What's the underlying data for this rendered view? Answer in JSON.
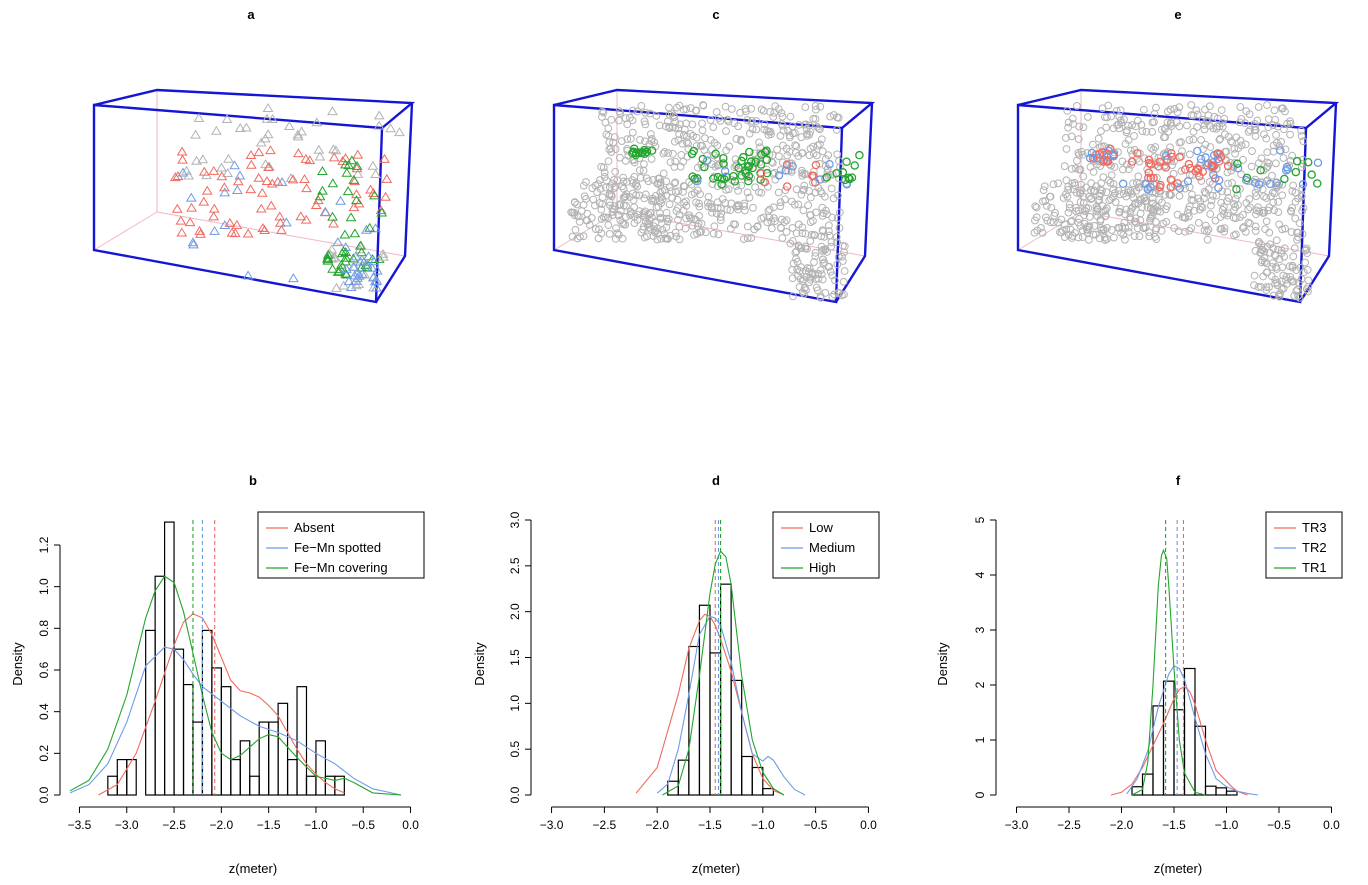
{
  "colors": {
    "red": "#f06a60",
    "blue": "#6f9be6",
    "green": "#22a52d",
    "gray": "#b3b3b3",
    "box": "#1515d5",
    "pinkbox": "#f2b7c3",
    "bar": "#000000"
  },
  "scatter3d": [
    {
      "panel_label": "a",
      "marker": "triangle",
      "points_shown": [
        "gray",
        "red",
        "blue",
        "green"
      ]
    },
    {
      "panel_label": "c",
      "marker": "circle",
      "points_shown": [
        "gray",
        "green",
        "red",
        "blue"
      ]
    },
    {
      "panel_label": "e",
      "marker": "circle",
      "points_shown": [
        "gray",
        "red",
        "blue",
        "green"
      ]
    }
  ],
  "chart_data": [
    {
      "type": "bar",
      "panel_label": "b",
      "xlabel": "z(meter)",
      "ylabel": "Density",
      "xlim": [
        -3.6,
        0.1
      ],
      "ylim": [
        0,
        1.32
      ],
      "xticks": [
        -3.5,
        -3.0,
        -2.5,
        -2.0,
        -1.5,
        -1.0,
        -0.5,
        0.0
      ],
      "xtick_labels": [
        "−3.5",
        "−3.0",
        "−2.5",
        "−2.0",
        "−1.5",
        "−1.0",
        "−0.5",
        "0.0"
      ],
      "yticks": [
        0.0,
        0.2,
        0.4,
        0.6,
        0.8,
        1.0,
        1.2
      ],
      "ytick_labels": [
        "0.0",
        "0.2",
        "0.4",
        "0.6",
        "0.8",
        "1.0",
        "1.2"
      ],
      "bin_width": 0.1,
      "bins_start": -3.2,
      "histogram": [
        0.09,
        0.17,
        0.17,
        0.0,
        0.79,
        1.05,
        1.31,
        0.7,
        0.53,
        0.35,
        0.79,
        0.61,
        0.52,
        0.17,
        0.26,
        0.09,
        0.35,
        0.35,
        0.44,
        0.17,
        0.52,
        0.09,
        0.26,
        0.09,
        0.09
      ],
      "legend_position": "top-right",
      "series": [
        {
          "name": "Absent",
          "color": "#f06a60",
          "vline": -2.07,
          "x": [
            -3.3,
            -3.1,
            -2.9,
            -2.7,
            -2.5,
            -2.4,
            -2.3,
            -2.2,
            -2.1,
            -2.0,
            -1.9,
            -1.8,
            -1.7,
            -1.6,
            -1.5,
            -1.4,
            -1.3,
            -1.2,
            -1.1,
            -1.0,
            -0.9,
            -0.8,
            -0.7
          ],
          "y": [
            0.0,
            0.05,
            0.2,
            0.45,
            0.72,
            0.83,
            0.87,
            0.85,
            0.77,
            0.66,
            0.55,
            0.5,
            0.49,
            0.47,
            0.43,
            0.38,
            0.3,
            0.22,
            0.15,
            0.1,
            0.06,
            0.03,
            0.01
          ]
        },
        {
          "name": "Fe−Mn spotted",
          "color": "#6f9be6",
          "vline": -2.2,
          "x": [
            -3.6,
            -3.4,
            -3.2,
            -3.0,
            -2.8,
            -2.6,
            -2.5,
            -2.4,
            -2.3,
            -2.2,
            -2.0,
            -1.8,
            -1.6,
            -1.4,
            -1.2,
            -1.0,
            -0.8,
            -0.6,
            -0.4,
            -0.1
          ],
          "y": [
            0.01,
            0.05,
            0.15,
            0.35,
            0.62,
            0.71,
            0.7,
            0.65,
            0.58,
            0.52,
            0.45,
            0.38,
            0.33,
            0.3,
            0.26,
            0.2,
            0.15,
            0.08,
            0.03,
            0.0
          ]
        },
        {
          "name": "Fe−Mn covering",
          "color": "#22a52d",
          "vline": -2.3,
          "x": [
            -3.6,
            -3.4,
            -3.2,
            -3.0,
            -2.8,
            -2.7,
            -2.6,
            -2.5,
            -2.4,
            -2.3,
            -2.2,
            -2.1,
            -2.0,
            -1.9,
            -1.8,
            -1.6,
            -1.5,
            -1.4,
            -1.2,
            -1.0,
            -0.8,
            -0.7,
            -0.6,
            -0.4,
            -0.1
          ],
          "y": [
            0.02,
            0.07,
            0.22,
            0.48,
            0.85,
            0.98,
            1.05,
            1.02,
            0.88,
            0.68,
            0.48,
            0.3,
            0.2,
            0.17,
            0.19,
            0.27,
            0.29,
            0.28,
            0.18,
            0.09,
            0.07,
            0.08,
            0.06,
            0.01,
            0.0
          ]
        }
      ]
    },
    {
      "type": "bar",
      "panel_label": "d",
      "xlabel": "z(meter)",
      "ylabel": "Density",
      "xlim": [
        -3.1,
        0.1
      ],
      "ylim": [
        0,
        3.0
      ],
      "xticks": [
        -3.0,
        -2.5,
        -2.0,
        -1.5,
        -1.0,
        -0.5,
        0.0
      ],
      "xtick_labels": [
        "−3.0",
        "−2.5",
        "−2.0",
        "−1.5",
        "−1.0",
        "−0.5",
        "0.0"
      ],
      "yticks": [
        0.0,
        0.5,
        1.0,
        1.5,
        2.0,
        2.5,
        3.0
      ],
      "ytick_labels": [
        "0.0",
        "0.5",
        "1.0",
        "1.5",
        "2.0",
        "2.5",
        "3.0"
      ],
      "bin_width": 0.1,
      "bins_start": -1.9,
      "histogram": [
        0.15,
        0.38,
        1.62,
        2.07,
        1.55,
        2.3,
        1.25,
        0.42,
        0.3,
        0.07
      ],
      "legend_position": "top-right",
      "series": [
        {
          "name": "Low",
          "color": "#f06a60",
          "vline": -1.45,
          "x": [
            -2.2,
            -2.0,
            -1.8,
            -1.7,
            -1.6,
            -1.55,
            -1.5,
            -1.45,
            -1.4,
            -1.3,
            -1.2,
            -1.1,
            -1.0,
            -0.9,
            -0.8
          ],
          "y": [
            0.02,
            0.3,
            1.1,
            1.6,
            1.9,
            1.97,
            1.95,
            1.85,
            1.7,
            1.35,
            0.9,
            0.45,
            0.18,
            0.05,
            0.0
          ]
        },
        {
          "name": "Medium",
          "color": "#6f9be6",
          "vline": -1.42,
          "x": [
            -2.0,
            -1.9,
            -1.8,
            -1.7,
            -1.6,
            -1.5,
            -1.45,
            -1.4,
            -1.3,
            -1.2,
            -1.1,
            -1.0,
            -0.95,
            -0.9,
            -0.8,
            -0.7,
            -0.6
          ],
          "y": [
            0.02,
            0.12,
            0.5,
            1.1,
            1.75,
            1.95,
            1.93,
            1.85,
            1.45,
            0.9,
            0.45,
            0.37,
            0.42,
            0.38,
            0.2,
            0.06,
            0.0
          ]
        },
        {
          "name": "High",
          "color": "#22a52d",
          "vline": -1.4,
          "x": [
            -1.95,
            -1.8,
            -1.7,
            -1.6,
            -1.5,
            -1.45,
            -1.4,
            -1.35,
            -1.3,
            -1.25,
            -1.2,
            -1.1,
            -1.0,
            -0.9,
            -0.8
          ],
          "y": [
            0.0,
            0.1,
            0.5,
            1.3,
            2.2,
            2.52,
            2.66,
            2.6,
            2.3,
            1.8,
            1.3,
            0.6,
            0.25,
            0.07,
            0.0
          ]
        }
      ]
    },
    {
      "type": "bar",
      "panel_label": "f",
      "xlabel": "z(meter)",
      "ylabel": "Density",
      "xlim": [
        -3.1,
        0.1
      ],
      "ylim": [
        0,
        5
      ],
      "xticks": [
        -3.0,
        -2.5,
        -2.0,
        -1.5,
        -1.0,
        -0.5,
        0.0
      ],
      "xtick_labels": [
        "−3.0",
        "−2.5",
        "−2.0",
        "−1.5",
        "−1.0",
        "−0.5",
        "0.0"
      ],
      "yticks": [
        0,
        1,
        2,
        3,
        4,
        5
      ],
      "ytick_labels": [
        "0",
        "1",
        "2",
        "3",
        "4",
        "5"
      ],
      "bin_width": 0.1,
      "bins_start": -1.9,
      "histogram": [
        0.15,
        0.38,
        1.62,
        2.07,
        1.55,
        2.3,
        1.25,
        0.16,
        0.13,
        0.07
      ],
      "legend_position": "top-right",
      "series": [
        {
          "name": "TR3",
          "color": "#f06a60",
          "vline": -1.41,
          "x": [
            -2.1,
            -2.0,
            -1.9,
            -1.8,
            -1.7,
            -1.6,
            -1.5,
            -1.45,
            -1.4,
            -1.35,
            -1.3,
            -1.2,
            -1.1,
            -1.0,
            -0.95,
            -0.9,
            -0.8
          ],
          "y": [
            0.0,
            0.05,
            0.2,
            0.5,
            0.9,
            1.3,
            1.75,
            1.92,
            1.97,
            1.88,
            1.65,
            1.0,
            0.45,
            0.25,
            0.15,
            0.07,
            0.0
          ]
        },
        {
          "name": "TR2",
          "color": "#6f9be6",
          "vline": -1.47,
          "x": [
            -1.95,
            -1.85,
            -1.75,
            -1.65,
            -1.55,
            -1.5,
            -1.45,
            -1.4,
            -1.3,
            -1.2,
            -1.1,
            -1.0,
            -0.9,
            -0.8,
            -0.7
          ],
          "y": [
            0.02,
            0.3,
            0.8,
            1.6,
            2.2,
            2.35,
            2.3,
            2.1,
            1.4,
            0.75,
            0.3,
            0.15,
            0.07,
            0.03,
            0.0
          ]
        },
        {
          "name": "TR1",
          "color": "#22a52d",
          "vline": -1.58,
          "x": [
            -1.9,
            -1.8,
            -1.75,
            -1.7,
            -1.65,
            -1.62,
            -1.6,
            -1.57,
            -1.55,
            -1.5,
            -1.45,
            -1.4,
            -1.3,
            -1.2
          ],
          "y": [
            0.0,
            0.1,
            0.6,
            2.0,
            3.8,
            4.35,
            4.45,
            4.3,
            3.8,
            2.3,
            1.0,
            0.4,
            0.05,
            0.0
          ]
        }
      ]
    }
  ]
}
